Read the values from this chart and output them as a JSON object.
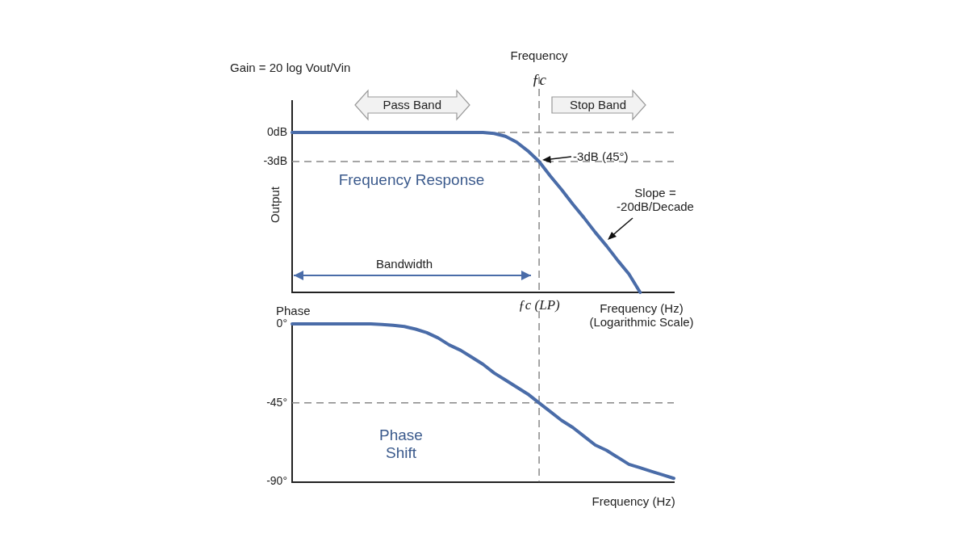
{
  "chart_data": [
    {
      "type": "line",
      "categories": [
        null,
        null,
        null,
        null,
        null,
        null,
        null,
        null,
        null,
        null,
        null,
        null,
        null,
        null,
        null,
        null,
        null,
        null,
        null,
        null,
        null,
        null,
        "ƒc (LP)",
        null,
        null,
        null,
        null,
        null,
        null,
        null,
        null,
        null,
        null,
        null,
        null
      ],
      "series": [
        {
          "color": "#4a6ca8",
          "values": [
            0,
            0,
            0,
            0,
            0,
            0,
            0,
            0,
            0,
            0,
            0,
            0,
            0,
            0,
            0,
            0,
            0,
            0,
            -0.1,
            -0.4,
            -1.0,
            -1.9,
            -3.0,
            -4.5,
            -5.9,
            -7.4,
            -8.8,
            -10.3,
            -11.7,
            -13.2,
            -14.6,
            -16.5,
            null,
            null,
            null
          ]
        }
      ],
      "ylim": [
        -16.5,
        3.25
      ],
      "yticks": [
        {
          "value": 0,
          "label": "0dB"
        },
        {
          "value": -3,
          "label": "-3dB"
        }
      ],
      "ylabel": "Output",
      "xlabel": "Frequency (Hz) (Logarithmic Scale)",
      "ref_lines": [
        {
          "axis": "y",
          "value": 0,
          "color": "#888888",
          "line_style": "dashed"
        },
        {
          "axis": "y",
          "value": -3,
          "color": "#888888",
          "line_style": "dashed"
        },
        {
          "axis": "x",
          "value": "ƒc (LP)",
          "label": "Frequency ƒc",
          "color": "#888888",
          "line_style": "dashed"
        }
      ],
      "annotations": [
        "Gain = 20 log Vout/Vin",
        "Pass Band",
        "Stop Band",
        {
          "text": "-3dB (45°)",
          "x": "ƒc (LP)",
          "y": -3
        },
        "Frequency Response",
        "Slope = -20dB/Decade",
        "Bandwidth"
      ],
      "grid": false,
      "legend": false
    },
    {
      "type": "line",
      "categories": [
        null,
        null,
        null,
        null,
        null,
        null,
        null,
        null,
        null,
        null,
        null,
        null,
        null,
        null,
        null,
        null,
        null,
        null,
        null,
        null,
        null,
        null,
        null,
        null,
        null,
        null,
        null,
        null,
        null,
        null,
        null,
        null,
        null,
        null,
        null
      ],
      "series": [
        {
          "color": "#4a6ca8",
          "values": [
            0,
            0,
            0,
            0,
            0,
            0,
            0,
            0,
            -0.3,
            -0.8,
            -1.5,
            -3,
            -5,
            -8,
            -12,
            -15,
            -19,
            -23,
            -28,
            -32,
            -36,
            -40,
            -45,
            -50,
            -55,
            -59,
            -64,
            -69,
            -72,
            -76,
            -80,
            -82,
            -84,
            -86,
            -88
          ]
        }
      ],
      "ylim": [
        -90,
        0
      ],
      "yticks": [
        {
          "value": 0,
          "label": "0°"
        },
        {
          "value": -45,
          "label": "-45°"
        },
        {
          "value": -90,
          "label": "-90°"
        }
      ],
      "ylabel": "Phase",
      "xlabel": "Frequency (Hz)",
      "tick_labels": "y",
      "ref_lines": [
        {
          "axis": "y",
          "value": -45,
          "color": "#888888",
          "line_style": "dashed"
        }
      ],
      "annotations": [
        "Phase Shift"
      ],
      "grid": false,
      "legend": false
    }
  ]
}
